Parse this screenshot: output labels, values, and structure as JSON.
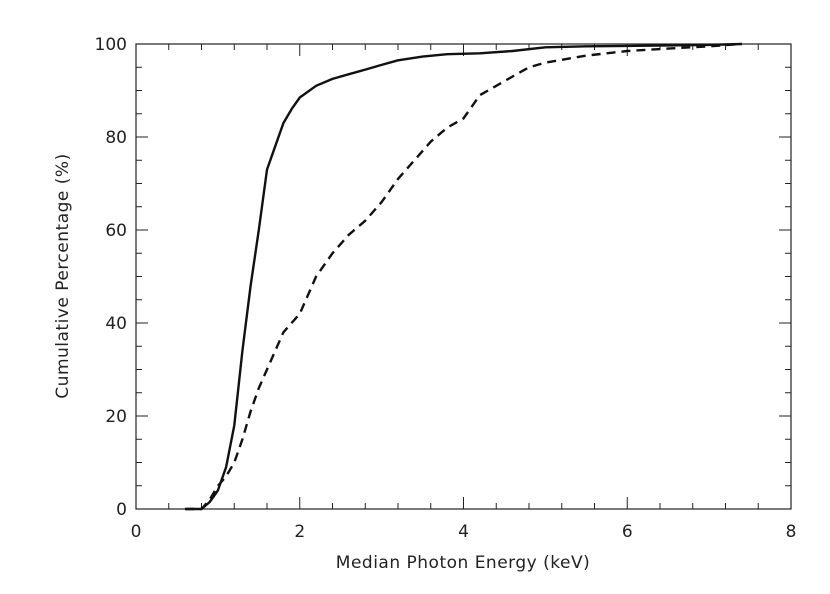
{
  "chart_data": {
    "type": "line",
    "title": "",
    "xlabel": "Median Photon Energy (keV)",
    "ylabel": "Cumulative Percentage (%)",
    "xlim": [
      0,
      8
    ],
    "ylim": [
      0,
      100
    ],
    "x_ticks": [
      "0",
      "2",
      "4",
      "6",
      "8"
    ],
    "y_ticks": [
      "0",
      "20",
      "40",
      "60",
      "80",
      "100"
    ],
    "grid": false,
    "series": [
      {
        "name": "solid",
        "style": "solid",
        "color": "#111111",
        "points": [
          [
            0.6,
            0
          ],
          [
            0.8,
            0
          ],
          [
            0.9,
            1.5
          ],
          [
            1.0,
            4
          ],
          [
            1.1,
            9
          ],
          [
            1.2,
            18
          ],
          [
            1.3,
            34
          ],
          [
            1.4,
            48
          ],
          [
            1.5,
            60
          ],
          [
            1.6,
            73
          ],
          [
            1.7,
            78
          ],
          [
            1.8,
            83
          ],
          [
            1.9,
            86
          ],
          [
            2.0,
            88.5
          ],
          [
            2.2,
            91
          ],
          [
            2.4,
            92.5
          ],
          [
            2.6,
            93.5
          ],
          [
            2.8,
            94.5
          ],
          [
            3.0,
            95.5
          ],
          [
            3.2,
            96.5
          ],
          [
            3.5,
            97.3
          ],
          [
            3.8,
            97.8
          ],
          [
            4.2,
            98
          ],
          [
            4.6,
            98.5
          ],
          [
            5.0,
            99.3
          ],
          [
            5.5,
            99.5
          ],
          [
            6.0,
            99.6
          ],
          [
            6.5,
            99.7
          ],
          [
            7.0,
            99.8
          ],
          [
            7.4,
            100
          ]
        ]
      },
      {
        "name": "dashed",
        "style": "dashed",
        "color": "#111111",
        "points": [
          [
            0.6,
            0
          ],
          [
            0.8,
            0
          ],
          [
            0.9,
            2
          ],
          [
            1.0,
            5
          ],
          [
            1.1,
            7
          ],
          [
            1.2,
            10
          ],
          [
            1.3,
            15
          ],
          [
            1.4,
            21
          ],
          [
            1.5,
            26
          ],
          [
            1.6,
            30
          ],
          [
            1.7,
            34
          ],
          [
            1.8,
            38
          ],
          [
            1.9,
            40
          ],
          [
            2.0,
            42
          ],
          [
            2.2,
            50
          ],
          [
            2.4,
            55
          ],
          [
            2.6,
            59
          ],
          [
            2.8,
            62
          ],
          [
            3.0,
            66
          ],
          [
            3.2,
            71
          ],
          [
            3.4,
            75
          ],
          [
            3.6,
            79
          ],
          [
            3.8,
            82
          ],
          [
            4.0,
            84
          ],
          [
            4.2,
            89
          ],
          [
            4.4,
            91
          ],
          [
            4.6,
            93
          ],
          [
            4.8,
            95
          ],
          [
            5.0,
            96
          ],
          [
            5.5,
            97.5
          ],
          [
            6.0,
            98.5
          ],
          [
            6.5,
            99
          ],
          [
            7.0,
            99.5
          ],
          [
            7.4,
            100
          ]
        ]
      }
    ]
  }
}
